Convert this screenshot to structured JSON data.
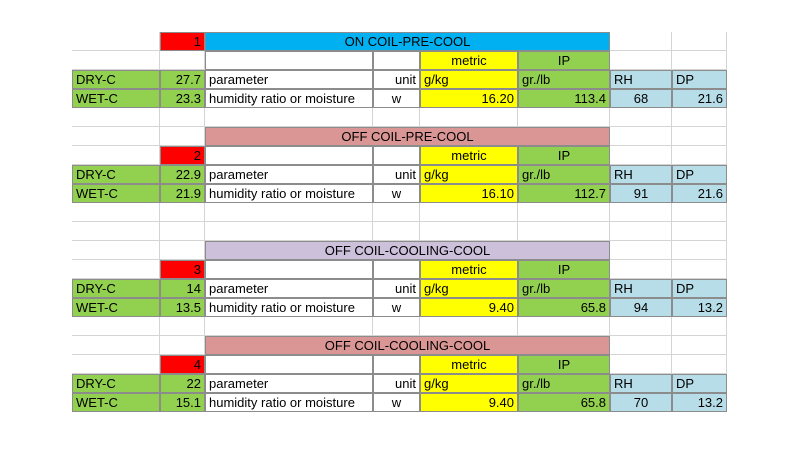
{
  "blocks": [
    {
      "number": "1",
      "title": "ON COIL-PRE-COOL",
      "dry_label": "DRY-C",
      "dry_value": "27.7",
      "wet_label": "WET-C",
      "wet_value": "23.3",
      "parameter_label": "parameter",
      "humidity_label": "humidity ratio or moisture",
      "unit_label": "unit",
      "unit_value": "w",
      "metric_header": "metric",
      "metric_unit": "g/kg",
      "metric_value": "16.20",
      "ip_header": "IP",
      "ip_unit": "gr./lb",
      "ip_value": "113.4",
      "rh_label": "RH",
      "rh_value": "68",
      "dp_label": "DP",
      "dp_value": "21.6"
    },
    {
      "number": "2",
      "title": "OFF COIL-PRE-COOL",
      "dry_label": "DRY-C",
      "dry_value": "22.9",
      "wet_label": "WET-C",
      "wet_value": "21.9",
      "parameter_label": "parameter",
      "humidity_label": "humidity ratio or moisture",
      "unit_label": "unit",
      "unit_value": "w",
      "metric_header": "metric",
      "metric_unit": "g/kg",
      "metric_value": "16.10",
      "ip_header": "IP",
      "ip_unit": "gr./lb",
      "ip_value": "112.7",
      "rh_label": "RH",
      "rh_value": "91",
      "dp_label": "DP",
      "dp_value": "21.6"
    },
    {
      "number": "3",
      "title": "OFF COIL-COOLING-COOL",
      "dry_label": "DRY-C",
      "dry_value": "14",
      "wet_label": "WET-C",
      "wet_value": "13.5",
      "parameter_label": "parameter",
      "humidity_label": "humidity ratio or moisture",
      "unit_label": "unit",
      "unit_value": "w",
      "metric_header": "metric",
      "metric_unit": "g/kg",
      "metric_value": "9.40",
      "ip_header": "IP",
      "ip_unit": "gr./lb",
      "ip_value": "65.8",
      "rh_label": "RH",
      "rh_value": "94",
      "dp_label": "DP",
      "dp_value": "13.2"
    },
    {
      "number": "4",
      "title": "OFF COIL-COOLING-COOL",
      "dry_label": "DRY-C",
      "dry_value": "22",
      "wet_label": "WET-C",
      "wet_value": "15.1",
      "parameter_label": "parameter",
      "humidity_label": "humidity ratio or moisture",
      "unit_label": "unit",
      "unit_value": "w",
      "metric_header": "metric",
      "metric_unit": "g/kg",
      "metric_value": "9.40",
      "ip_header": "IP",
      "ip_unit": "gr./lb",
      "ip_value": "65.8",
      "rh_label": "RH",
      "rh_value": "70",
      "dp_label": "DP",
      "dp_value": "13.2"
    }
  ],
  "colors": {
    "block_title_1": "#00b0f0",
    "block_title_2": "#da9694",
    "block_title_3": "#ccc0da",
    "block_title_4": "#da9694",
    "label_green": "#92d050",
    "number_red": "#ff0000",
    "metric_yellow": "#ffff00",
    "rh_dp_blue": "#b7dee8"
  }
}
